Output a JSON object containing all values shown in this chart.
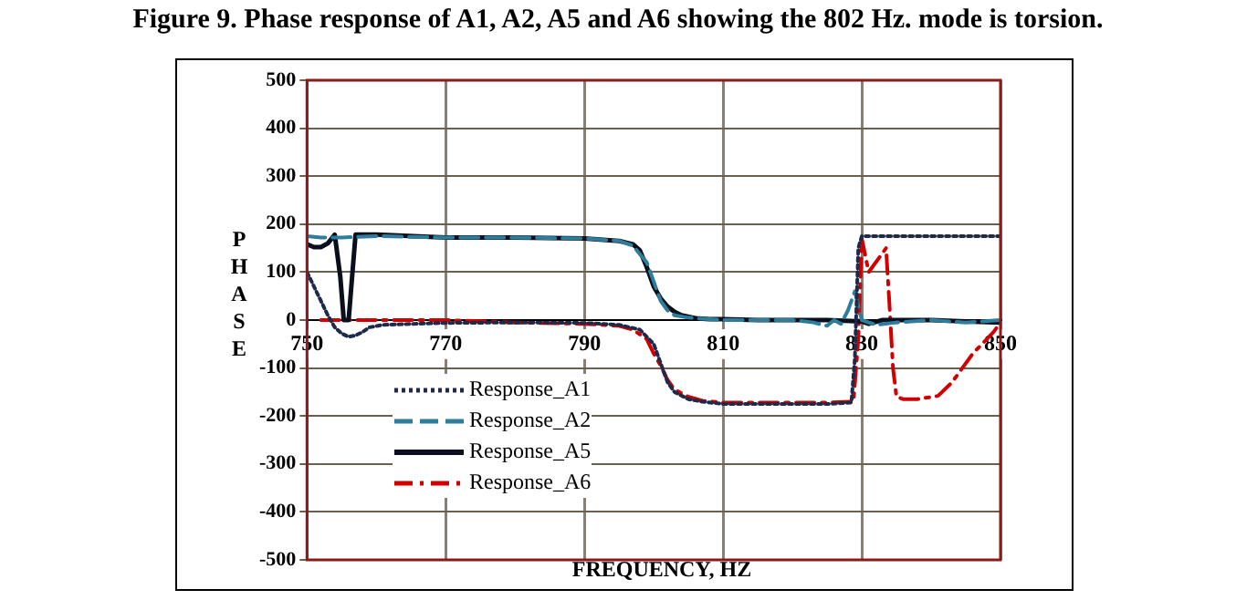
{
  "chart_data": {
    "type": "line",
    "title": "Figure 9. Phase response of A1, A2, A5 and A6 showing the 802 Hz. mode is torsion.",
    "xlabel": "FREQUENCY, HZ",
    "ylabel": "PHASE",
    "xlim": [
      750,
      850
    ],
    "xticks": [
      750,
      770,
      790,
      810,
      830,
      850
    ],
    "ylim": [
      -500,
      500
    ],
    "yticks": [
      -500,
      -400,
      -300,
      -200,
      -100,
      0,
      100,
      200,
      300,
      400,
      500
    ],
    "grid": true,
    "legend": "bottom left",
    "marker": "none",
    "series": [
      {
        "name": "Response_A1",
        "color": "#1f2a4a",
        "line_style": "dotted",
        "x": [
          750,
          751,
          752,
          753,
          754,
          755,
          756,
          757,
          758,
          759,
          761,
          765,
          770,
          780,
          790,
          795,
          798,
          800,
          801,
          802,
          803,
          805,
          807,
          810,
          815,
          820,
          825,
          828.5,
          829,
          829.5,
          830,
          835,
          840,
          845,
          850
        ],
        "values": [
          100,
          70,
          40,
          10,
          -15,
          -28,
          -35,
          -32,
          -25,
          -15,
          -10,
          -8,
          -6,
          -5,
          -6,
          -10,
          -20,
          -50,
          -90,
          -130,
          -150,
          -165,
          -170,
          -175,
          -175,
          -175,
          -175,
          -172,
          -80,
          150,
          175,
          175,
          175,
          175,
          175
        ]
      },
      {
        "name": "Response_A2",
        "color": "#2e7d9a",
        "line_style": "dashed",
        "x": [
          750,
          752,
          755,
          760,
          770,
          780,
          790,
          795,
          797,
          799,
          800,
          801,
          802,
          803,
          805,
          808,
          810,
          815,
          820,
          823,
          825,
          826,
          827,
          828,
          829,
          829.5,
          830,
          832,
          835,
          840,
          845,
          850
        ],
        "values": [
          175,
          172,
          172,
          175,
          172,
          172,
          170,
          165,
          155,
          120,
          80,
          40,
          20,
          10,
          5,
          2,
          0,
          0,
          0,
          -5,
          -12,
          0,
          -8,
          20,
          60,
          30,
          0,
          -10,
          -5,
          0,
          -5,
          0
        ]
      },
      {
        "name": "Response_A5",
        "color": "#0a0f1e",
        "line_style": "solid",
        "x": [
          750,
          751,
          752,
          753,
          754,
          754.8,
          755.3,
          756,
          756.5,
          757,
          758,
          760,
          770,
          780,
          790,
          795,
          797,
          798,
          799,
          800,
          801,
          802,
          803,
          804,
          806,
          808,
          810,
          815,
          820,
          825,
          830,
          831,
          833,
          835,
          840,
          845,
          850
        ],
        "values": [
          158,
          152,
          152,
          160,
          178,
          90,
          0,
          0,
          90,
          178,
          178,
          178,
          172,
          172,
          170,
          165,
          158,
          145,
          110,
          70,
          45,
          28,
          17,
          10,
          4,
          2,
          2,
          0,
          0,
          0,
          -3,
          -8,
          0,
          0,
          0,
          -3,
          -5
        ]
      },
      {
        "name": "Response_A6",
        "color": "#d00000",
        "line_style": "dashdot",
        "x": [
          752,
          760,
          770,
          780,
          790,
          795,
          797,
          799,
          800,
          801,
          802,
          803,
          805,
          807,
          810,
          815,
          820,
          825,
          828.8,
          829.5,
          830,
          831,
          833.5,
          834,
          834.5,
          835,
          836,
          838,
          841,
          843,
          846,
          849,
          850
        ],
        "values": [
          0,
          0,
          0,
          -5,
          -8,
          -12,
          -20,
          -40,
          -70,
          -95,
          -125,
          -145,
          -160,
          -168,
          -172,
          -172,
          -172,
          -172,
          -170,
          -40,
          170,
          100,
          150,
          30,
          -100,
          -160,
          -165,
          -165,
          -158,
          -130,
          -70,
          -25,
          -5
        ]
      }
    ]
  }
}
